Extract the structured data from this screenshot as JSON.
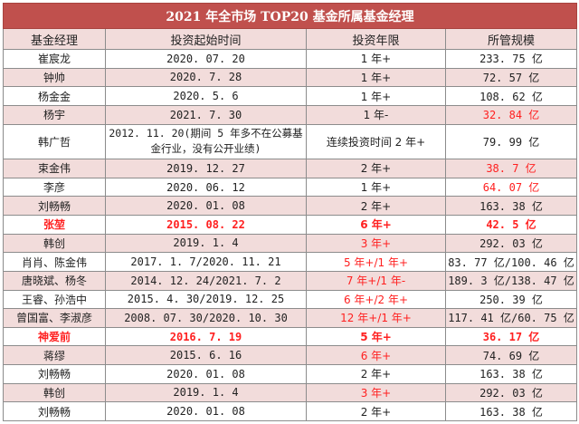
{
  "title": "2021 年全市场 TOP20 基金所属基金经理",
  "columns": [
    "基金经理",
    "投资起始时间",
    "投资年限",
    "所管规模"
  ],
  "rows": [
    {
      "manager": "崔宸龙",
      "start": "2020. 07. 20",
      "years": "1 年+",
      "aum": "233. 75 亿",
      "aum_red": false,
      "years_red": false,
      "highlight": false
    },
    {
      "manager": "钟帅",
      "start": "2020. 7. 28",
      "years": "1 年+",
      "aum": "72. 57 亿",
      "aum_red": false,
      "years_red": false,
      "highlight": false
    },
    {
      "manager": "杨金金",
      "start": "2020. 5. 6",
      "years": "1 年+",
      "aum": "108. 62 亿",
      "aum_red": false,
      "years_red": false,
      "highlight": false
    },
    {
      "manager": "杨宇",
      "start": "2021. 7. 30",
      "years": "1 年-",
      "aum": "32. 84 亿",
      "aum_red": true,
      "years_red": false,
      "highlight": false
    },
    {
      "manager": "韩广哲",
      "start": "2012. 11. 20(期间 5 年多不在公募基金行业，没有公开业绩)",
      "years": "连续投资时间 2 年+",
      "aum": "79. 99 亿",
      "aum_red": false,
      "years_red": false,
      "highlight": false,
      "tall": true
    },
    {
      "manager": "束金伟",
      "start": "2019. 12. 27",
      "years": "2 年+",
      "aum": "38. 7 亿",
      "aum_red": true,
      "years_red": false,
      "highlight": false
    },
    {
      "manager": "李彦",
      "start": "2020. 06. 12",
      "years": "1 年+",
      "aum": "64. 07 亿",
      "aum_red": true,
      "years_red": false,
      "highlight": false
    },
    {
      "manager": "刘畅畅",
      "start": "2020. 01. 08",
      "years": "2 年+",
      "aum": "163. 38 亿",
      "aum_red": false,
      "years_red": false,
      "highlight": false
    },
    {
      "manager": "张堃",
      "start": "2015. 08. 22",
      "years": "6 年+",
      "aum": "42. 5 亿",
      "aum_red": false,
      "years_red": false,
      "highlight": true
    },
    {
      "manager": "韩创",
      "start": "2019. 1. 4",
      "years": "3 年+",
      "aum": "292. 03 亿",
      "aum_red": false,
      "years_red": true,
      "highlight": false
    },
    {
      "manager": "肖肖、陈金伟",
      "start": "2017. 1. 7/2020. 11. 21",
      "years": "5 年+/1 年+",
      "aum": "83. 77 亿/100. 46 亿",
      "aum_red": false,
      "years_red": true,
      "highlight": false
    },
    {
      "manager": "唐晓斌、杨冬",
      "start": "2014. 12. 24/2021. 7. 2",
      "years": "7 年+/1 年-",
      "aum": "189. 3 亿/138. 47 亿",
      "aum_red": false,
      "years_red": true,
      "highlight": false
    },
    {
      "manager": "王睿、孙浩中",
      "start": "2015. 4. 30/2019. 12. 25",
      "years": "6 年+/2 年+",
      "aum": "250. 39 亿",
      "aum_red": false,
      "years_red": true,
      "highlight": false
    },
    {
      "manager": "曾国富、李淑彦",
      "start": "2008. 07. 30/2020. 10. 30",
      "years": "12 年+/1 年+",
      "aum": "117. 41 亿/60. 75 亿",
      "aum_red": false,
      "years_red": true,
      "highlight": false
    },
    {
      "manager": "神爱前",
      "start": "2016. 7. 19",
      "years": "5 年+",
      "aum": "36. 17 亿",
      "aum_red": false,
      "years_red": false,
      "highlight": true
    },
    {
      "manager": "蒋缪",
      "start": "2015. 6. 16",
      "years": "6 年+",
      "aum": "74. 69 亿",
      "aum_red": false,
      "years_red": true,
      "highlight": false
    },
    {
      "manager": "刘畅畅",
      "start": "2020. 01. 08",
      "years": "2 年+",
      "aum": "163. 38 亿",
      "aum_red": false,
      "years_red": false,
      "highlight": false
    },
    {
      "manager": "韩创",
      "start": "2019. 1. 4",
      "years": "3 年+",
      "aum": "292. 03 亿",
      "aum_red": false,
      "years_red": true,
      "highlight": false
    },
    {
      "manager": "刘畅畅",
      "start": "2020. 01. 08",
      "years": "2 年+",
      "aum": "163. 38 亿",
      "aum_red": false,
      "years_red": false,
      "highlight": false
    }
  ]
}
